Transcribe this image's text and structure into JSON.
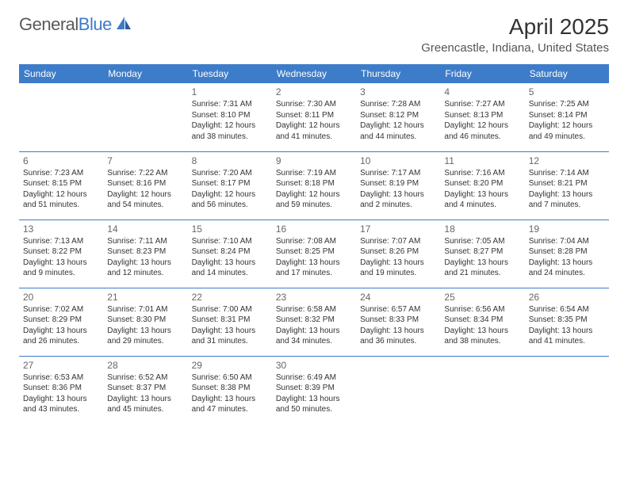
{
  "logo": {
    "text1": "General",
    "text2": "Blue"
  },
  "title": "April 2025",
  "location": "Greencastle, Indiana, United States",
  "colors": {
    "header_bg": "#3d7cc9",
    "header_text": "#ffffff",
    "border": "#3d7cc9",
    "text": "#333333",
    "daynum": "#666666",
    "logo_gray": "#5a5a5a",
    "logo_blue": "#3d7cc9"
  },
  "day_names": [
    "Sunday",
    "Monday",
    "Tuesday",
    "Wednesday",
    "Thursday",
    "Friday",
    "Saturday"
  ],
  "first_weekday": 2,
  "days": [
    {
      "n": 1,
      "sunrise": "7:31 AM",
      "sunset": "8:10 PM",
      "day_h": 12,
      "day_m": 38
    },
    {
      "n": 2,
      "sunrise": "7:30 AM",
      "sunset": "8:11 PM",
      "day_h": 12,
      "day_m": 41
    },
    {
      "n": 3,
      "sunrise": "7:28 AM",
      "sunset": "8:12 PM",
      "day_h": 12,
      "day_m": 44
    },
    {
      "n": 4,
      "sunrise": "7:27 AM",
      "sunset": "8:13 PM",
      "day_h": 12,
      "day_m": 46
    },
    {
      "n": 5,
      "sunrise": "7:25 AM",
      "sunset": "8:14 PM",
      "day_h": 12,
      "day_m": 49
    },
    {
      "n": 6,
      "sunrise": "7:23 AM",
      "sunset": "8:15 PM",
      "day_h": 12,
      "day_m": 51
    },
    {
      "n": 7,
      "sunrise": "7:22 AM",
      "sunset": "8:16 PM",
      "day_h": 12,
      "day_m": 54
    },
    {
      "n": 8,
      "sunrise": "7:20 AM",
      "sunset": "8:17 PM",
      "day_h": 12,
      "day_m": 56
    },
    {
      "n": 9,
      "sunrise": "7:19 AM",
      "sunset": "8:18 PM",
      "day_h": 12,
      "day_m": 59
    },
    {
      "n": 10,
      "sunrise": "7:17 AM",
      "sunset": "8:19 PM",
      "day_h": 13,
      "day_m": 2
    },
    {
      "n": 11,
      "sunrise": "7:16 AM",
      "sunset": "8:20 PM",
      "day_h": 13,
      "day_m": 4
    },
    {
      "n": 12,
      "sunrise": "7:14 AM",
      "sunset": "8:21 PM",
      "day_h": 13,
      "day_m": 7
    },
    {
      "n": 13,
      "sunrise": "7:13 AM",
      "sunset": "8:22 PM",
      "day_h": 13,
      "day_m": 9
    },
    {
      "n": 14,
      "sunrise": "7:11 AM",
      "sunset": "8:23 PM",
      "day_h": 13,
      "day_m": 12
    },
    {
      "n": 15,
      "sunrise": "7:10 AM",
      "sunset": "8:24 PM",
      "day_h": 13,
      "day_m": 14
    },
    {
      "n": 16,
      "sunrise": "7:08 AM",
      "sunset": "8:25 PM",
      "day_h": 13,
      "day_m": 17
    },
    {
      "n": 17,
      "sunrise": "7:07 AM",
      "sunset": "8:26 PM",
      "day_h": 13,
      "day_m": 19
    },
    {
      "n": 18,
      "sunrise": "7:05 AM",
      "sunset": "8:27 PM",
      "day_h": 13,
      "day_m": 21
    },
    {
      "n": 19,
      "sunrise": "7:04 AM",
      "sunset": "8:28 PM",
      "day_h": 13,
      "day_m": 24
    },
    {
      "n": 20,
      "sunrise": "7:02 AM",
      "sunset": "8:29 PM",
      "day_h": 13,
      "day_m": 26
    },
    {
      "n": 21,
      "sunrise": "7:01 AM",
      "sunset": "8:30 PM",
      "day_h": 13,
      "day_m": 29
    },
    {
      "n": 22,
      "sunrise": "7:00 AM",
      "sunset": "8:31 PM",
      "day_h": 13,
      "day_m": 31
    },
    {
      "n": 23,
      "sunrise": "6:58 AM",
      "sunset": "8:32 PM",
      "day_h": 13,
      "day_m": 34
    },
    {
      "n": 24,
      "sunrise": "6:57 AM",
      "sunset": "8:33 PM",
      "day_h": 13,
      "day_m": 36
    },
    {
      "n": 25,
      "sunrise": "6:56 AM",
      "sunset": "8:34 PM",
      "day_h": 13,
      "day_m": 38
    },
    {
      "n": 26,
      "sunrise": "6:54 AM",
      "sunset": "8:35 PM",
      "day_h": 13,
      "day_m": 41
    },
    {
      "n": 27,
      "sunrise": "6:53 AM",
      "sunset": "8:36 PM",
      "day_h": 13,
      "day_m": 43
    },
    {
      "n": 28,
      "sunrise": "6:52 AM",
      "sunset": "8:37 PM",
      "day_h": 13,
      "day_m": 45
    },
    {
      "n": 29,
      "sunrise": "6:50 AM",
      "sunset": "8:38 PM",
      "day_h": 13,
      "day_m": 47
    },
    {
      "n": 30,
      "sunrise": "6:49 AM",
      "sunset": "8:39 PM",
      "day_h": 13,
      "day_m": 50
    }
  ],
  "labels": {
    "sunrise": "Sunrise:",
    "sunset": "Sunset:",
    "daylight": "Daylight:",
    "hours": "hours",
    "and": "and",
    "minutes": "minutes."
  }
}
